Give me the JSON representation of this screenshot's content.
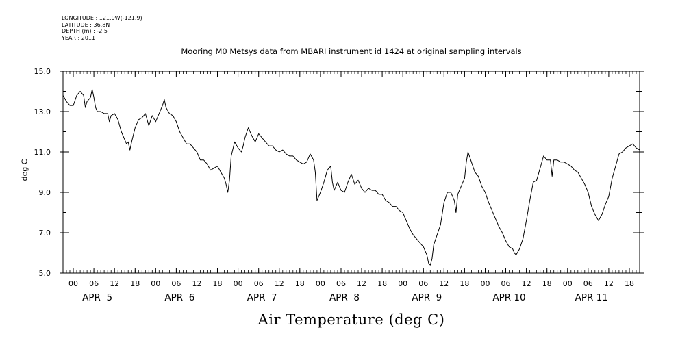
{
  "metadata": {
    "longitude": "LONGITUDE : 121.9W(-121.9)",
    "latitude": "LATITUDE : 36.8N",
    "depth": "DEPTH (m) : -2.5",
    "year": "YEAR : 2011"
  },
  "chart_data": {
    "type": "line",
    "title": "Mooring M0 Metsys data from MBARI instrument id 1424 at original sampling intervals",
    "xlabel": "Air Temperature (deg C)",
    "ylabel": "deg C",
    "ylim": [
      5.0,
      15.0
    ],
    "y_ticks": [
      "5.0",
      "7.0",
      "9.0",
      "11.0",
      "13.0",
      "15.0"
    ],
    "x_range_hours": [
      -3,
      165
    ],
    "x_tick_labels": [
      "00",
      "06",
      "12",
      "18",
      "00",
      "06",
      "12",
      "18",
      "00",
      "06",
      "12",
      "18",
      "00",
      "06",
      "12",
      "18",
      "00",
      "06",
      "12",
      "18",
      "00",
      "06",
      "12",
      "18",
      "00",
      "06",
      "12",
      "18"
    ],
    "day_labels": [
      "APR  5",
      "APR  6",
      "APR  7",
      "APR  8",
      "APR  9",
      "APR 10",
      "APR 11"
    ],
    "series": [
      {
        "points": [
          [
            -3,
            13.8
          ],
          [
            -2,
            13.5
          ],
          [
            -1,
            13.3
          ],
          [
            0,
            13.3
          ],
          [
            1,
            13.8
          ],
          [
            2,
            14.0
          ],
          [
            3,
            13.8
          ],
          [
            3.5,
            13.2
          ],
          [
            4,
            13.5
          ],
          [
            5,
            13.7
          ],
          [
            5.5,
            14.1
          ],
          [
            6,
            13.7
          ],
          [
            6.5,
            13.2
          ],
          [
            7,
            13.0
          ],
          [
            8,
            13.0
          ],
          [
            9,
            12.9
          ],
          [
            10,
            12.9
          ],
          [
            10.5,
            12.5
          ],
          [
            11,
            12.8
          ],
          [
            12,
            12.9
          ],
          [
            13,
            12.6
          ],
          [
            14,
            12.0
          ],
          [
            15,
            11.6
          ],
          [
            15.5,
            11.4
          ],
          [
            16,
            11.5
          ],
          [
            16.5,
            11.1
          ],
          [
            17,
            11.5
          ],
          [
            18,
            12.2
          ],
          [
            19,
            12.6
          ],
          [
            20,
            12.7
          ],
          [
            21,
            12.9
          ],
          [
            22,
            12.3
          ],
          [
            23,
            12.8
          ],
          [
            24,
            12.5
          ],
          [
            25,
            12.9
          ],
          [
            26,
            13.3
          ],
          [
            26.5,
            13.6
          ],
          [
            27,
            13.2
          ],
          [
            28,
            12.9
          ],
          [
            29,
            12.8
          ],
          [
            30,
            12.5
          ],
          [
            31,
            12.0
          ],
          [
            32,
            11.7
          ],
          [
            33,
            11.4
          ],
          [
            34,
            11.4
          ],
          [
            35,
            11.2
          ],
          [
            36,
            11.0
          ],
          [
            37,
            10.6
          ],
          [
            38,
            10.6
          ],
          [
            39,
            10.4
          ],
          [
            40,
            10.1
          ],
          [
            41,
            10.2
          ],
          [
            42,
            10.3
          ],
          [
            43,
            10.0
          ],
          [
            44,
            9.7
          ],
          [
            44.5,
            9.4
          ],
          [
            45,
            9.0
          ],
          [
            45.5,
            9.6
          ],
          [
            46,
            10.8
          ],
          [
            47,
            11.5
          ],
          [
            48,
            11.2
          ],
          [
            49,
            11.0
          ],
          [
            49.5,
            11.3
          ],
          [
            50,
            11.7
          ],
          [
            51,
            12.2
          ],
          [
            52,
            11.8
          ],
          [
            53,
            11.5
          ],
          [
            54,
            11.9
          ],
          [
            55,
            11.7
          ],
          [
            56,
            11.5
          ],
          [
            57,
            11.3
          ],
          [
            58,
            11.3
          ],
          [
            59,
            11.1
          ],
          [
            60,
            11.0
          ],
          [
            61,
            11.1
          ],
          [
            62,
            10.9
          ],
          [
            63,
            10.8
          ],
          [
            64,
            10.8
          ],
          [
            65,
            10.6
          ],
          [
            66,
            10.5
          ],
          [
            67,
            10.4
          ],
          [
            68,
            10.5
          ],
          [
            69,
            10.9
          ],
          [
            70,
            10.6
          ],
          [
            70.5,
            10.0
          ],
          [
            71,
            8.6
          ],
          [
            72,
            9.0
          ],
          [
            73,
            9.5
          ],
          [
            74,
            10.1
          ],
          [
            75,
            10.3
          ],
          [
            75.5,
            9.5
          ],
          [
            76,
            9.1
          ],
          [
            77,
            9.5
          ],
          [
            78,
            9.1
          ],
          [
            79,
            9.0
          ],
          [
            80,
            9.5
          ],
          [
            81,
            9.9
          ],
          [
            82,
            9.4
          ],
          [
            83,
            9.6
          ],
          [
            84,
            9.2
          ],
          [
            85,
            9.0
          ],
          [
            86,
            9.2
          ],
          [
            87,
            9.1
          ],
          [
            88,
            9.1
          ],
          [
            89,
            8.9
          ],
          [
            90,
            8.9
          ],
          [
            91,
            8.6
          ],
          [
            92,
            8.5
          ],
          [
            93,
            8.3
          ],
          [
            94,
            8.3
          ],
          [
            95,
            8.1
          ],
          [
            96,
            8.0
          ],
          [
            97,
            7.6
          ],
          [
            98,
            7.2
          ],
          [
            99,
            6.9
          ],
          [
            100,
            6.7
          ],
          [
            101,
            6.5
          ],
          [
            102,
            6.3
          ],
          [
            103,
            5.9
          ],
          [
            103.5,
            5.5
          ],
          [
            104,
            5.4
          ],
          [
            104.5,
            5.7
          ],
          [
            105,
            6.4
          ],
          [
            106,
            6.9
          ],
          [
            107,
            7.4
          ],
          [
            108,
            8.5
          ],
          [
            109,
            9.0
          ],
          [
            110,
            9.0
          ],
          [
            111,
            8.6
          ],
          [
            111.5,
            8.0
          ],
          [
            112,
            8.9
          ],
          [
            113,
            9.3
          ],
          [
            114,
            9.7
          ],
          [
            114.5,
            10.5
          ],
          [
            115,
            11.0
          ],
          [
            116,
            10.5
          ],
          [
            117,
            10.0
          ],
          [
            118,
            9.8
          ],
          [
            119,
            9.3
          ],
          [
            120,
            9.0
          ],
          [
            121,
            8.5
          ],
          [
            122,
            8.1
          ],
          [
            123,
            7.7
          ],
          [
            124,
            7.3
          ],
          [
            125,
            7.0
          ],
          [
            126,
            6.6
          ],
          [
            127,
            6.3
          ],
          [
            128,
            6.2
          ],
          [
            128.5,
            6.0
          ],
          [
            129,
            5.9
          ],
          [
            130,
            6.2
          ],
          [
            131,
            6.7
          ],
          [
            132,
            7.6
          ],
          [
            133,
            8.6
          ],
          [
            134,
            9.5
          ],
          [
            135,
            9.6
          ],
          [
            136,
            10.2
          ],
          [
            137,
            10.8
          ],
          [
            138,
            10.6
          ],
          [
            139,
            10.6
          ],
          [
            139.5,
            9.8
          ],
          [
            140,
            10.6
          ],
          [
            141,
            10.6
          ],
          [
            142,
            10.5
          ],
          [
            143,
            10.5
          ],
          [
            144,
            10.4
          ],
          [
            145,
            10.3
          ],
          [
            146,
            10.1
          ],
          [
            147,
            10.0
          ],
          [
            148,
            9.7
          ],
          [
            149,
            9.4
          ],
          [
            150,
            9.0
          ],
          [
            151,
            8.3
          ],
          [
            152,
            7.9
          ],
          [
            153,
            7.6
          ],
          [
            154,
            7.9
          ],
          [
            155,
            8.4
          ],
          [
            156,
            8.8
          ],
          [
            157,
            9.7
          ],
          [
            158,
            10.3
          ],
          [
            159,
            10.9
          ],
          [
            160,
            11.0
          ],
          [
            161,
            11.2
          ],
          [
            162,
            11.3
          ],
          [
            163,
            11.4
          ],
          [
            164,
            11.2
          ],
          [
            165,
            11.1
          ]
        ]
      }
    ]
  }
}
